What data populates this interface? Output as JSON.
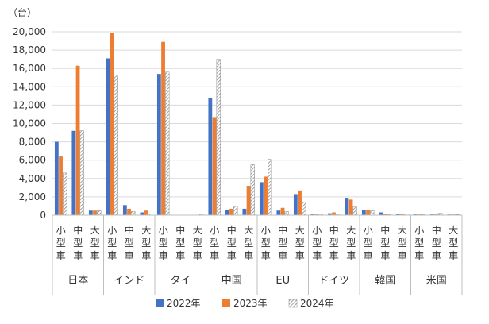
{
  "chart_data": {
    "type": "bar",
    "unit_label": "（台）",
    "ylim": [
      0,
      20000
    ],
    "y_ticks": [
      "0",
      "2,000",
      "4,000",
      "6,000",
      "8,000",
      "10,000",
      "12,000",
      "14,000",
      "16,000",
      "18,000",
      "20,000"
    ],
    "grid": true,
    "legend_position": "bottom",
    "groups": [
      {
        "label": "日本",
        "subs": [
          "小型車",
          "中型車",
          "大型車"
        ]
      },
      {
        "label": "インド",
        "subs": [
          "小型車",
          "中型車",
          "大型車"
        ]
      },
      {
        "label": "タイ",
        "subs": [
          "小型車",
          "中型車",
          "大型車"
        ]
      },
      {
        "label": "中国",
        "subs": [
          "小型車",
          "中型車",
          "大型車"
        ]
      },
      {
        "label": "EU",
        "subs": [
          "小型車",
          "中型車",
          "大型車"
        ]
      },
      {
        "label": "ドイツ",
        "subs": [
          "小型車",
          "中型車",
          "大型車"
        ]
      },
      {
        "label": "韓国",
        "subs": [
          "小型車",
          "中型車",
          "大型車"
        ]
      },
      {
        "label": "米国",
        "subs": [
          "小型車",
          "中型車",
          "大型車"
        ]
      }
    ],
    "series": [
      {
        "name": "2022年",
        "color": "#4472c4",
        "pattern": "solid",
        "values": [
          8000,
          9200,
          500,
          17100,
          1100,
          300,
          15400,
          0,
          0,
          12800,
          600,
          700,
          3600,
          500,
          2300,
          100,
          200,
          1900,
          600,
          300,
          150,
          80,
          80,
          20
        ]
      },
      {
        "name": "2023年",
        "color": "#ed7d31",
        "pattern": "solid",
        "values": [
          6400,
          16300,
          500,
          19900,
          700,
          500,
          18900,
          0,
          0,
          10700,
          700,
          3200,
          4200,
          800,
          2700,
          80,
          300,
          1700,
          600,
          100,
          150,
          80,
          80,
          20
        ]
      },
      {
        "name": "2024年",
        "color": "#a5a5a5",
        "pattern": "hatch",
        "values": [
          4600,
          9200,
          500,
          15300,
          400,
          150,
          15600,
          0,
          100,
          17000,
          1000,
          5500,
          6100,
          400,
          1400,
          100,
          150,
          900,
          500,
          80,
          150,
          80,
          200,
          50
        ]
      }
    ]
  }
}
